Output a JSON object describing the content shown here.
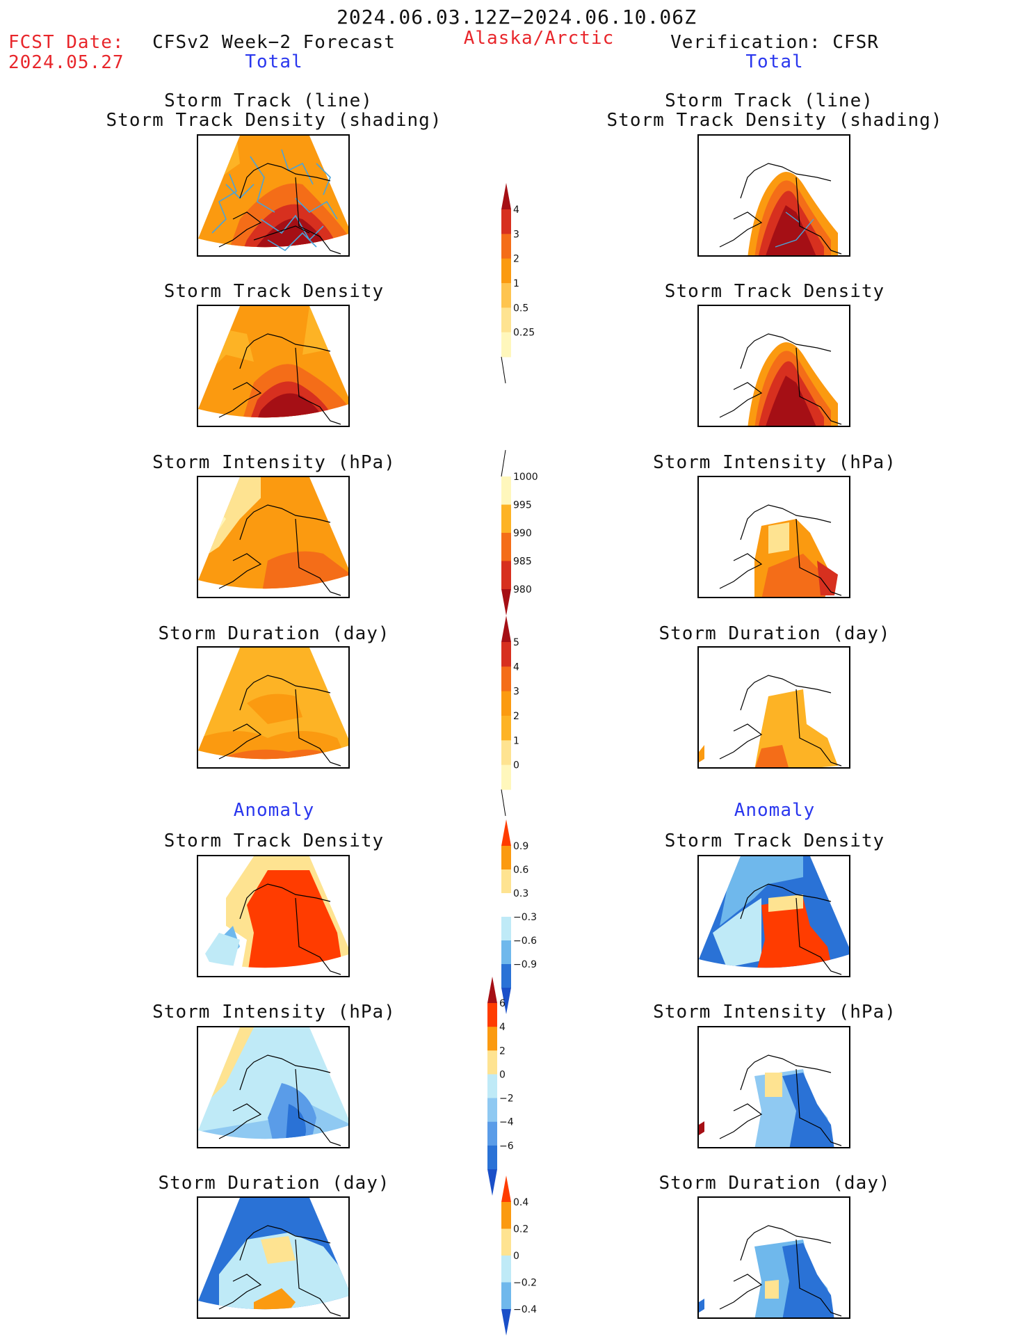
{
  "header": {
    "valid_period": "2024.06.03.12Z−2024.06.10.06Z",
    "fcst_date_label": "FCST Date:",
    "fcst_date": "2024.05.27",
    "region": "Alaska/Arctic",
    "left_title": "CFSv2 Week−2 Forecast",
    "right_title": "Verification: CFSR",
    "section_total": "Total",
    "section_anomaly": "Anomaly"
  },
  "panel_titles": {
    "track_line": "Storm Track (line)",
    "track_shading": "Storm Track Density (shading)",
    "density": "Storm Track Density",
    "intensity": "Storm Intensity (hPa)",
    "duration": "Storm Duration (day)"
  },
  "colorbars": [
    {
      "id": "density",
      "ticks": [
        "4",
        "3",
        "2",
        "1",
        "0.5",
        "0.25"
      ],
      "colors": [
        "#a50f15",
        "#d7301f",
        "#f46d18",
        "#fb9a10",
        "#fec44f",
        "#fee391",
        "#fff7bc"
      ]
    },
    {
      "id": "intensity",
      "ticks": [
        "1000",
        "995",
        "990",
        "985",
        "980"
      ],
      "colors": [
        "#fff7bc",
        "#fdb325",
        "#f46d18",
        "#d7301f",
        "#a50f15"
      ]
    },
    {
      "id": "duration",
      "ticks": [
        "5",
        "4",
        "3",
        "2",
        "1",
        "0"
      ],
      "colors": [
        "#a50f15",
        "#d7301f",
        "#f46d18",
        "#fb9a10",
        "#fdb325",
        "#fee391",
        "#fff7bc"
      ]
    },
    {
      "id": "density_anom",
      "ticks": [
        "0.9",
        "0.6",
        "0.3",
        "−0.3",
        "−0.6",
        "−0.9"
      ],
      "colors": [
        "#ff3c00",
        "#fb9a10",
        "#fee391",
        "#ffffff",
        "#bfeaf7",
        "#6fb8ec",
        "#2a72d6",
        "#1a4fc8"
      ]
    },
    {
      "id": "intensity_anom",
      "ticks": [
        "6",
        "4",
        "2",
        "0",
        "−2",
        "−4",
        "−6"
      ],
      "colors": [
        "#a50f15",
        "#ff3c00",
        "#fb9a10",
        "#fee391",
        "#bfeaf7",
        "#8fc9f2",
        "#5a9ce8",
        "#2a72d6",
        "#1a4fc8"
      ]
    },
    {
      "id": "duration_anom",
      "ticks": [
        "0.4",
        "0.2",
        "0",
        "−0.2",
        "−0.4"
      ],
      "colors": [
        "#ff3c00",
        "#fb9a10",
        "#fee391",
        "#bfeaf7",
        "#6fb8ec",
        "#1a4fc8"
      ]
    }
  ]
}
